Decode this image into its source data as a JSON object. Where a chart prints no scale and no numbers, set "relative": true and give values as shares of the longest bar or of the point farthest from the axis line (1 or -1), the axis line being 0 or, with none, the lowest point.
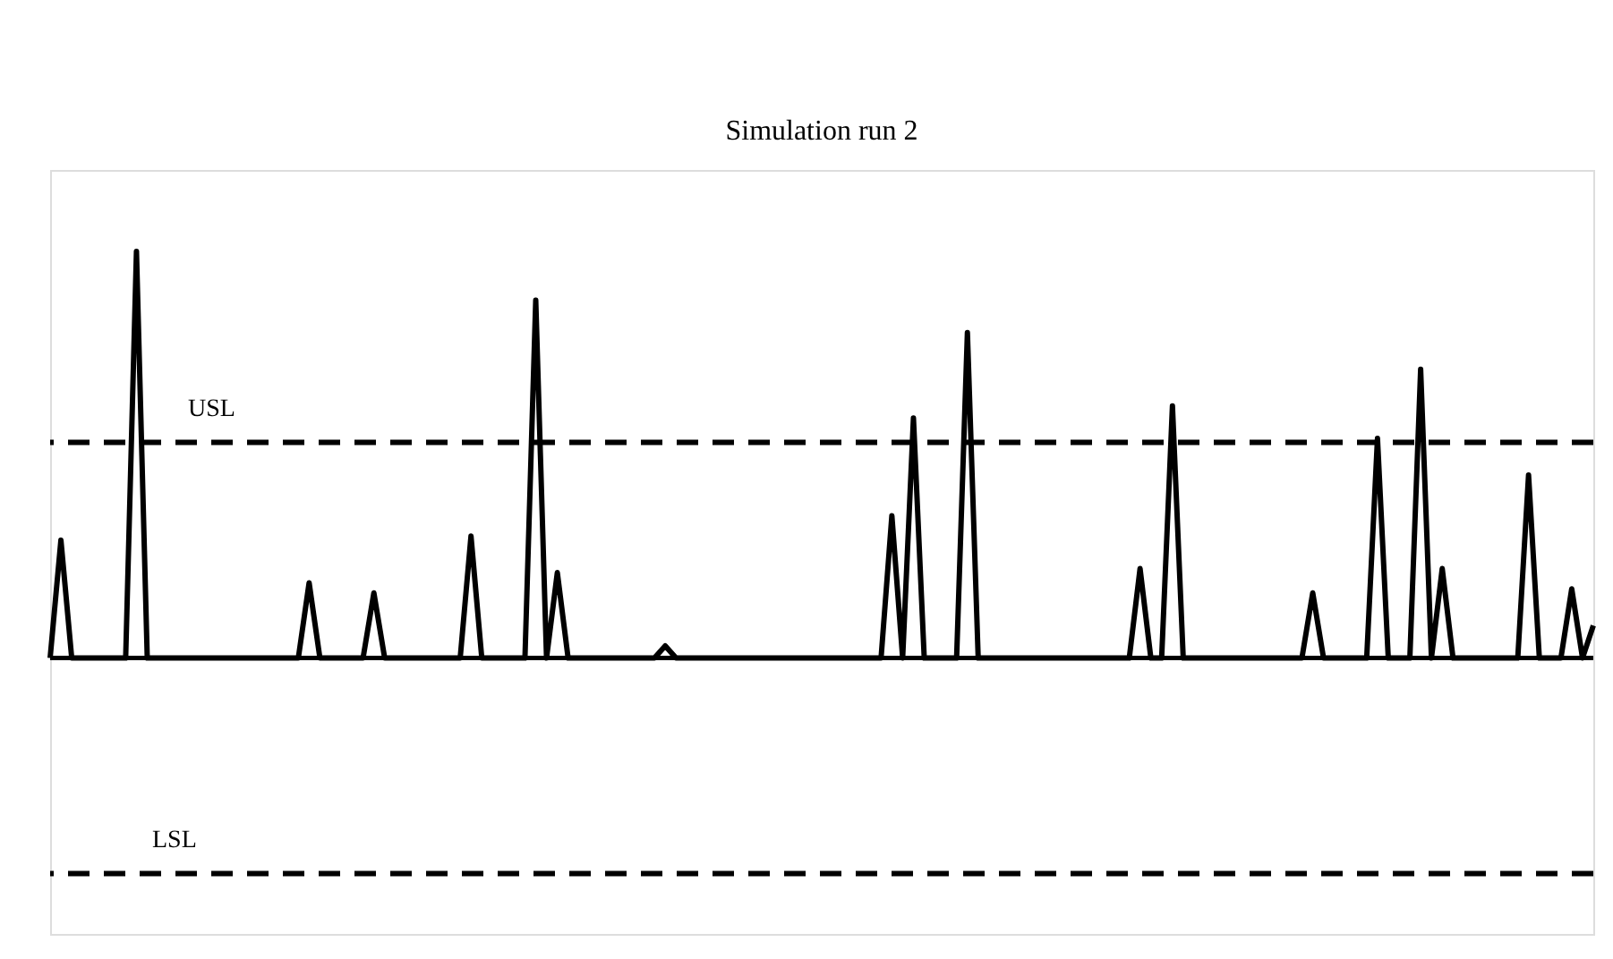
{
  "chart_data": {
    "type": "line",
    "title": "Simulation run 2",
    "relative": true,
    "color": "#000000",
    "line_style": "solid",
    "categories": [
      null,
      null,
      null,
      null,
      null,
      null,
      null,
      null,
      null,
      null,
      null,
      null,
      null,
      null,
      null,
      null,
      null,
      null,
      null,
      null,
      null,
      null,
      null,
      null,
      null,
      null,
      null,
      null,
      null,
      null,
      null,
      null,
      null,
      null,
      null,
      null,
      null,
      null,
      null,
      null,
      null,
      null,
      null,
      null,
      null,
      null,
      null,
      null,
      null,
      null,
      null,
      null,
      null,
      null,
      null,
      null,
      null,
      null,
      null,
      null,
      null,
      null,
      null,
      null,
      null,
      null,
      null,
      null,
      null,
      null,
      null,
      null,
      null,
      null,
      null,
      null,
      null,
      null,
      null,
      null,
      null,
      null,
      null,
      null,
      null,
      null,
      null,
      null,
      null,
      null,
      null,
      null,
      null,
      null,
      null,
      null,
      null,
      null,
      null,
      null,
      null,
      null,
      null,
      null,
      null,
      null,
      null,
      null,
      null,
      null,
      null,
      null,
      null,
      null,
      null,
      null,
      null,
      null,
      null,
      null,
      null,
      null,
      null,
      null,
      null,
      null,
      null,
      null,
      null,
      null,
      null,
      null,
      null,
      null,
      null,
      null,
      null,
      null,
      null,
      null,
      null,
      null,
      null,
      null
    ],
    "values": [
      0,
      0.29,
      0,
      0,
      0,
      0,
      0,
      0,
      1.0,
      0,
      0,
      0,
      0,
      0,
      0,
      0,
      0,
      0,
      0,
      0,
      0,
      0,
      0,
      0,
      0.185,
      0,
      0,
      0,
      0,
      0,
      0.16,
      0,
      0,
      0,
      0,
      0,
      0,
      0,
      0,
      0.3,
      0,
      0,
      0,
      0,
      0,
      0.88,
      0,
      0.21,
      0,
      0,
      0,
      0,
      0,
      0,
      0,
      0,
      0,
      0.03,
      0,
      0,
      0,
      0,
      0,
      0,
      0,
      0,
      0,
      0,
      0,
      0,
      0,
      0,
      0,
      0,
      0,
      0,
      0,
      0,
      0.35,
      0,
      0.59,
      0,
      0,
      0,
      0,
      0.8,
      0,
      0,
      0,
      0,
      0,
      0,
      0,
      0,
      0,
      0,
      0,
      0,
      0,
      0,
      0,
      0.22,
      0,
      0,
      0.62,
      0,
      0,
      0,
      0,
      0,
      0,
      0,
      0,
      0,
      0,
      0,
      0,
      0.16,
      0,
      0,
      0,
      0,
      0,
      0.54,
      0,
      0,
      0,
      0.71,
      0,
      0.22,
      0,
      0,
      0,
      0,
      0,
      0,
      0,
      0.45,
      0,
      0,
      0,
      0.17,
      0,
      0.08
    ],
    "ref_lines": [
      {
        "axis": "y",
        "value": 0.53,
        "label": "USL",
        "line_style": "dashed"
      },
      {
        "axis": "y",
        "value": -0.53,
        "label": "LSL",
        "line_style": "dashed"
      }
    ]
  }
}
